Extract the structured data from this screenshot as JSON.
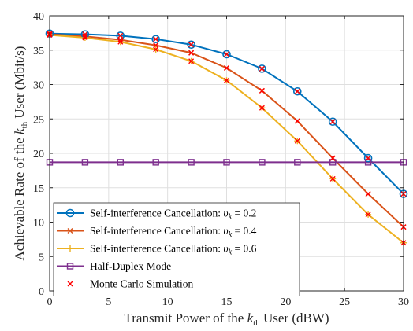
{
  "chart_data": {
    "type": "line",
    "xlabel_main": "Transmit Power of the ",
    "xlabel_k": "k",
    "xlabel_sub": "th",
    "xlabel_tail": " User (dBW)",
    "ylabel_main": "Achievable Rate of the ",
    "ylabel_k": "k",
    "ylabel_sub": "th",
    "ylabel_tail": " User (Mbit/s)",
    "xlim": [
      0,
      30
    ],
    "ylim": [
      0,
      40
    ],
    "xticks": [
      0,
      5,
      10,
      15,
      20,
      25,
      30
    ],
    "yticks": [
      0,
      5,
      10,
      15,
      20,
      25,
      30,
      35,
      40
    ],
    "grid": true,
    "legend_position": "bottom-left",
    "x": [
      0,
      3,
      6,
      9,
      12,
      15,
      18,
      21,
      24,
      27,
      30
    ],
    "series": [
      {
        "name": "Self-interference Cancellation: ",
        "nu_value": "0.2",
        "color": "#0072BD",
        "marker": "circle",
        "values": [
          37.4,
          37.3,
          37.1,
          36.6,
          35.8,
          34.4,
          32.3,
          29.0,
          24.6,
          19.3,
          14.1
        ]
      },
      {
        "name": "Self-interference Cancellation: ",
        "nu_value": "0.4",
        "color": "#D95319",
        "marker": "x",
        "values": [
          37.3,
          37.0,
          36.5,
          35.7,
          34.6,
          32.4,
          29.1,
          24.7,
          19.3,
          14.1,
          9.3
        ]
      },
      {
        "name": "Self-interference Cancellation: ",
        "nu_value": "0.6",
        "color": "#EDB120",
        "marker": "plus",
        "values": [
          37.2,
          36.8,
          36.2,
          35.1,
          33.4,
          30.6,
          26.6,
          21.8,
          16.3,
          11.1,
          7.0
        ]
      },
      {
        "name": "Half-Duplex Mode",
        "color": "#7E2F8E",
        "marker": "square",
        "values": [
          18.7,
          18.7,
          18.7,
          18.7,
          18.7,
          18.7,
          18.7,
          18.7,
          18.7,
          18.7,
          18.7
        ]
      },
      {
        "name": "Monte Carlo Simulation",
        "color": "#FF0000",
        "marker": "x-only"
      }
    ]
  }
}
